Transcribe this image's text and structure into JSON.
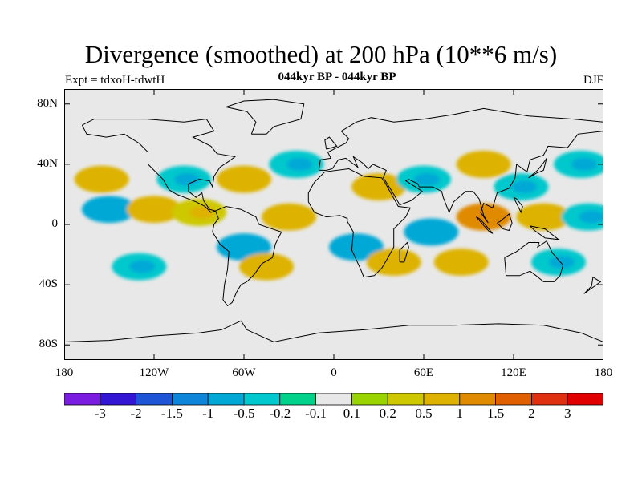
{
  "header": {
    "title": "Divergence (smoothed) at 200 hPa (10**6 m/s)",
    "subtitle": "044kyr BP - 044kyr BP",
    "experiment": "Expt = tdxoH-tdwtH",
    "season": "DJF"
  },
  "map": {
    "projection": "cylindrical equidistant",
    "land_fill": "#e8e8e8",
    "coastline_color": "#000000",
    "lat_labels": [
      {
        "lat": 80,
        "text": "80N"
      },
      {
        "lat": 40,
        "text": "40N"
      },
      {
        "lat": 0,
        "text": "0"
      },
      {
        "lat": -40,
        "text": "40S"
      },
      {
        "lat": -80,
        "text": "80S"
      }
    ],
    "lon_labels": [
      {
        "lon": -180,
        "text": "180"
      },
      {
        "lon": -120,
        "text": "120W"
      },
      {
        "lon": -60,
        "text": "60W"
      },
      {
        "lon": 0,
        "text": "0"
      },
      {
        "lon": 60,
        "text": "60E"
      },
      {
        "lon": 120,
        "text": "120E"
      },
      {
        "lon": 180,
        "text": "180"
      }
    ],
    "lat_range": [
      -90,
      90
    ],
    "lon_range": [
      -180,
      180
    ]
  },
  "colorbar": {
    "colors": [
      "#7a1de0",
      "#3316d4",
      "#1e54d6",
      "#0d86d9",
      "#00a8d6",
      "#00c8cc",
      "#00d28c",
      "#e8e8e8",
      "#9ad400",
      "#cdc800",
      "#ddb200",
      "#e08a00",
      "#e06000",
      "#df3010",
      "#e00000"
    ],
    "labels": [
      "-3",
      "-2",
      "-1.5",
      "-1",
      "-0.5",
      "-0.2",
      "-0.1",
      "0.1",
      "0.2",
      "0.5",
      "1",
      "1.5",
      "2",
      "3"
    ]
  },
  "chart_data": {
    "type": "heatmap",
    "title": "Divergence (smoothed) at 200 hPa (10**6 m/s)",
    "subtitle": "044kyr BP - 044kyr BP",
    "levels": [
      -3,
      -2,
      -1.5,
      -1,
      -0.5,
      -0.2,
      -0.1,
      0.1,
      0.2,
      0.5,
      1,
      1.5,
      2,
      3
    ],
    "xlim": [
      -180,
      180
    ],
    "ylim": [
      -90,
      90
    ],
    "field_features": [
      {
        "lon": -155,
        "lat": 30,
        "value": 0.6
      },
      {
        "lon": -150,
        "lat": 10,
        "value": -0.6
      },
      {
        "lon": -130,
        "lat": -28,
        "value": -0.5
      },
      {
        "lon": -120,
        "lat": 10,
        "value": 0.5
      },
      {
        "lon": -100,
        "lat": 30,
        "value": -0.5
      },
      {
        "lon": -90,
        "lat": 8,
        "value": 0.4
      },
      {
        "lon": -60,
        "lat": 30,
        "value": 0.8
      },
      {
        "lon": -60,
        "lat": -15,
        "value": -0.6
      },
      {
        "lon": -45,
        "lat": -28,
        "value": 0.6
      },
      {
        "lon": -30,
        "lat": 5,
        "value": 0.6
      },
      {
        "lon": -25,
        "lat": 40,
        "value": -0.5
      },
      {
        "lon": 15,
        "lat": -15,
        "value": -0.6
      },
      {
        "lon": 30,
        "lat": 25,
        "value": 0.6
      },
      {
        "lon": 40,
        "lat": -25,
        "value": 0.5
      },
      {
        "lon": 60,
        "lat": 30,
        "value": -0.5
      },
      {
        "lon": 65,
        "lat": -5,
        "value": -0.6
      },
      {
        "lon": 85,
        "lat": -25,
        "value": 0.6
      },
      {
        "lon": 100,
        "lat": 5,
        "value": 1.2
      },
      {
        "lon": 100,
        "lat": 40,
        "value": 0.5
      },
      {
        "lon": 125,
        "lat": 25,
        "value": -0.5
      },
      {
        "lon": 140,
        "lat": 5,
        "value": 0.6
      },
      {
        "lon": 150,
        "lat": -25,
        "value": -0.5
      },
      {
        "lon": 165,
        "lat": 40,
        "value": -0.5
      },
      {
        "lon": 170,
        "lat": 5,
        "value": -0.5
      }
    ]
  }
}
